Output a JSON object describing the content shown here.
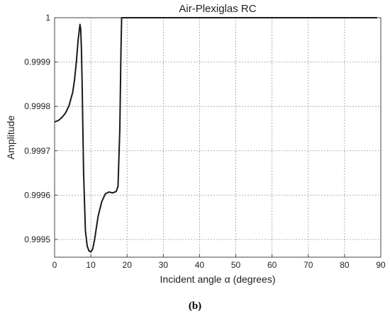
{
  "chart_data": {
    "type": "line",
    "title": "Air-Plexiglas RC",
    "xlabel": "Incident angle α (degrees)",
    "ylabel": "Amplitude",
    "caption": "(b)",
    "xlim": [
      0,
      90
    ],
    "ylim": [
      0.99946,
      1.0
    ],
    "xticks": [
      0,
      10,
      20,
      30,
      40,
      50,
      60,
      70,
      80,
      90
    ],
    "yticks": [
      0.9995,
      0.9996,
      0.9997,
      0.9998,
      0.9999,
      1
    ],
    "ytick_labels": [
      "0.9995",
      "0.9996",
      "0.9997",
      "0.9998",
      "0.9999",
      "1"
    ],
    "grid": true,
    "series": [
      {
        "color": "#1a1a1a",
        "x": [
          0,
          1,
          2,
          3,
          4,
          5,
          5.5,
          6,
          6.5,
          7,
          7.2,
          7.4,
          7.6,
          7.8,
          8,
          8.5,
          9,
          9.5,
          10,
          10.5,
          11,
          11.5,
          12,
          13,
          14,
          15,
          16,
          17,
          17.5,
          18,
          18.3,
          18.5,
          19,
          30,
          40,
          50,
          60,
          70,
          80,
          89
        ],
        "y": [
          0.999765,
          0.999768,
          0.999775,
          0.999785,
          0.999802,
          0.999832,
          0.99986,
          0.9999,
          0.99995,
          0.999985,
          0.999975,
          0.99993,
          0.99985,
          0.99975,
          0.99965,
          0.99952,
          0.999485,
          0.999474,
          0.999472,
          0.999478,
          0.999498,
          0.999525,
          0.999552,
          0.999585,
          0.999603,
          0.999607,
          0.999605,
          0.999608,
          0.99962,
          0.99975,
          0.99992,
          1.0,
          1.0,
          1.0,
          1.0,
          1.0,
          1.0,
          1.0,
          1.0,
          1.0
        ]
      }
    ]
  }
}
